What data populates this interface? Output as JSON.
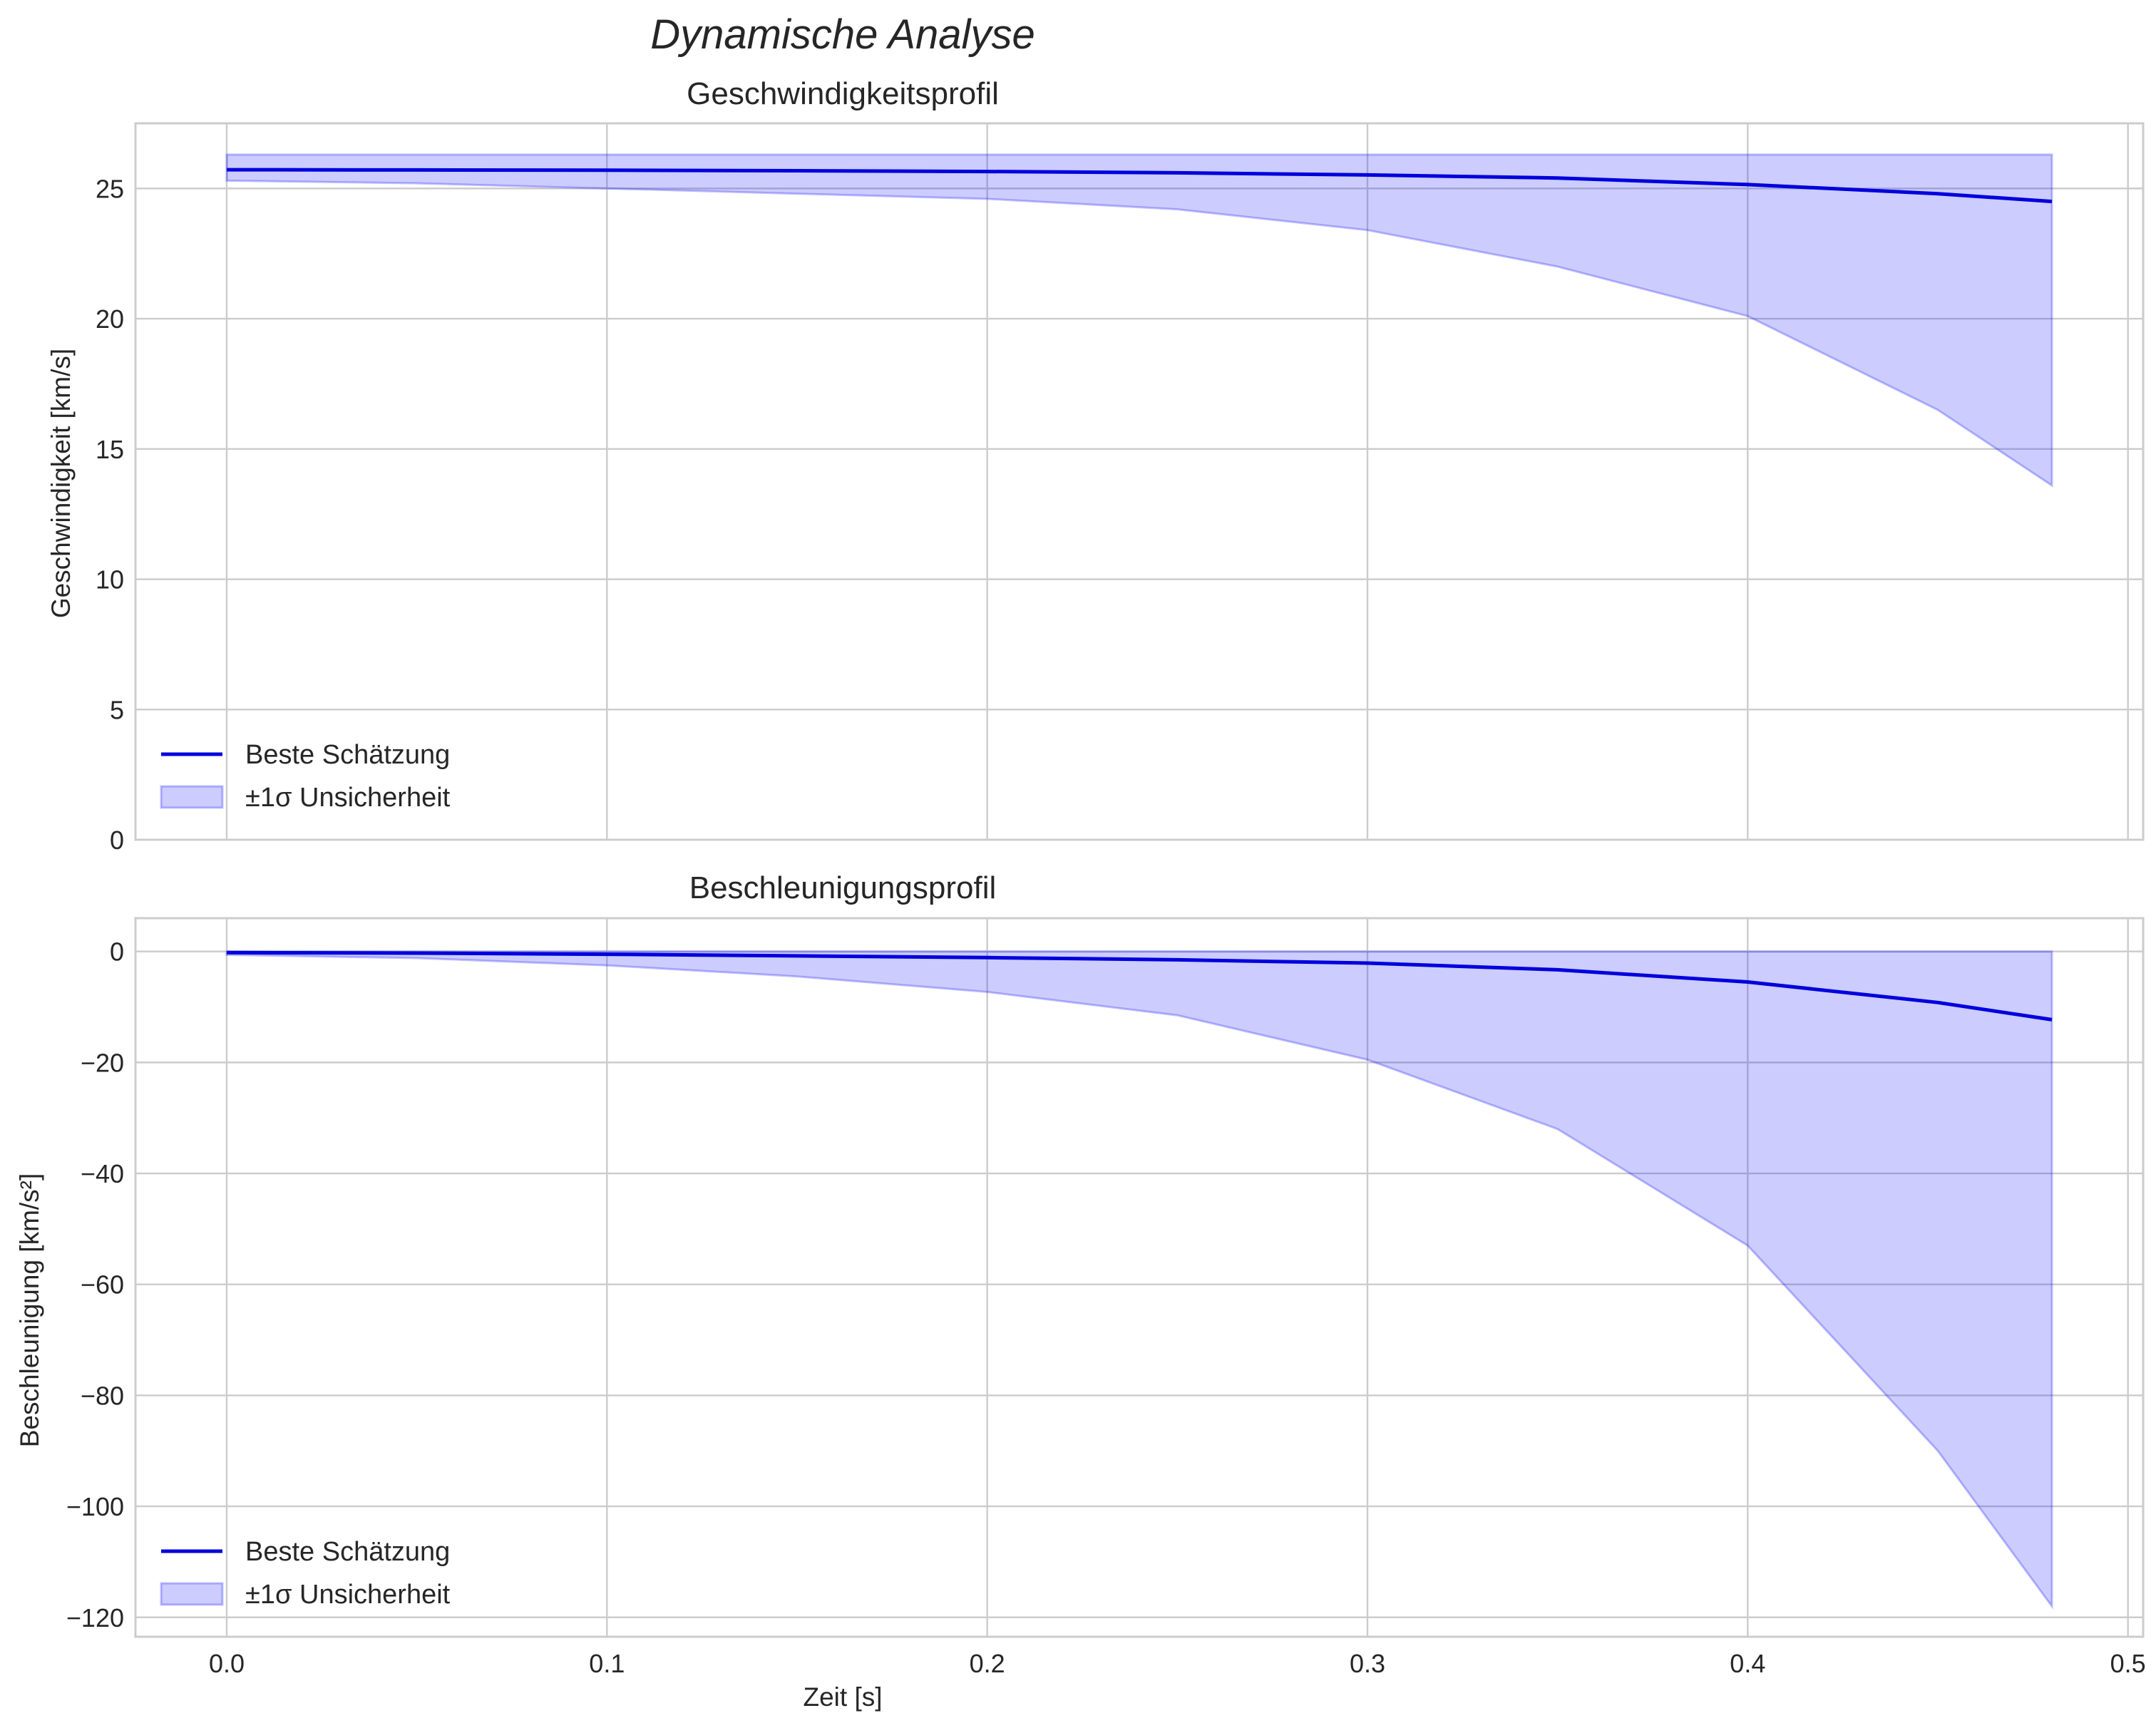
{
  "figure": {
    "suptitle": "Dynamische Analyse",
    "colors": {
      "line": "#0000dd",
      "band": "#0000ff",
      "grid": "#cccccc",
      "frame": "#cccccc",
      "text": "#262626"
    }
  },
  "chart_data": [
    {
      "type": "line",
      "title": "Geschwindigkeitsprofil",
      "xlabel": "",
      "ylabel": "Geschwindigkeit [km/s]",
      "xlim": [
        -0.024,
        0.504
      ],
      "ylim": [
        0,
        27.5
      ],
      "xticks": [
        0.0,
        0.1,
        0.2,
        0.3,
        0.4,
        0.5
      ],
      "xtick_labels": [
        "",
        "",
        "",
        "",
        "",
        ""
      ],
      "yticks": [
        0,
        5,
        10,
        15,
        20,
        25
      ],
      "ytick_labels": [
        "0",
        "5",
        "10",
        "15",
        "20",
        "25"
      ],
      "grid": true,
      "legend_position": "lower-left",
      "x": [
        0.0,
        0.05,
        0.1,
        0.15,
        0.2,
        0.25,
        0.3,
        0.35,
        0.4,
        0.45,
        0.48
      ],
      "series": [
        {
          "name": "Beste Schätzung",
          "kind": "line",
          "values": [
            25.72,
            25.71,
            25.7,
            25.68,
            25.65,
            25.6,
            25.52,
            25.4,
            25.15,
            24.8,
            24.5
          ]
        },
        {
          "name": "±1σ Unsicherheit",
          "kind": "band",
          "upper": [
            26.3,
            26.3,
            26.3,
            26.3,
            26.3,
            26.3,
            26.3,
            26.3,
            26.3,
            26.3,
            26.3
          ],
          "lower": [
            25.3,
            25.2,
            25.0,
            24.8,
            24.6,
            24.2,
            23.4,
            22.0,
            20.1,
            16.5,
            13.6
          ]
        }
      ]
    },
    {
      "type": "line",
      "title": "Beschleunigungsprofil",
      "xlabel": "Zeit [s]",
      "ylabel": "Beschleunigung [km/s²]",
      "xlim": [
        -0.024,
        0.504
      ],
      "ylim": [
        -123.5,
        6
      ],
      "xticks": [
        0.0,
        0.1,
        0.2,
        0.3,
        0.4,
        0.5
      ],
      "xtick_labels": [
        "0.0",
        "0.1",
        "0.2",
        "0.3",
        "0.4",
        "0.5"
      ],
      "yticks": [
        -120,
        -100,
        -80,
        -60,
        -40,
        -20,
        0
      ],
      "ytick_labels": [
        "−120",
        "−100",
        "−80",
        "−60",
        "−40",
        "−20",
        "0"
      ],
      "grid": true,
      "legend_position": "lower-left",
      "x": [
        0.0,
        0.05,
        0.1,
        0.15,
        0.2,
        0.25,
        0.3,
        0.35,
        0.4,
        0.45,
        0.48
      ],
      "series": [
        {
          "name": "Beste Schätzung",
          "kind": "line",
          "values": [
            -0.2,
            -0.3,
            -0.5,
            -0.8,
            -1.1,
            -1.5,
            -2.1,
            -3.3,
            -5.5,
            -9.2,
            -12.3
          ]
        },
        {
          "name": "±1σ Unsicherheit",
          "kind": "band",
          "upper": [
            0,
            0,
            0,
            0,
            0,
            0,
            0,
            0,
            0,
            0,
            0
          ],
          "lower": [
            -0.6,
            -1.2,
            -2.5,
            -4.5,
            -7.3,
            -11.5,
            -19.5,
            -32,
            -53,
            -90,
            -118
          ]
        }
      ]
    }
  ]
}
